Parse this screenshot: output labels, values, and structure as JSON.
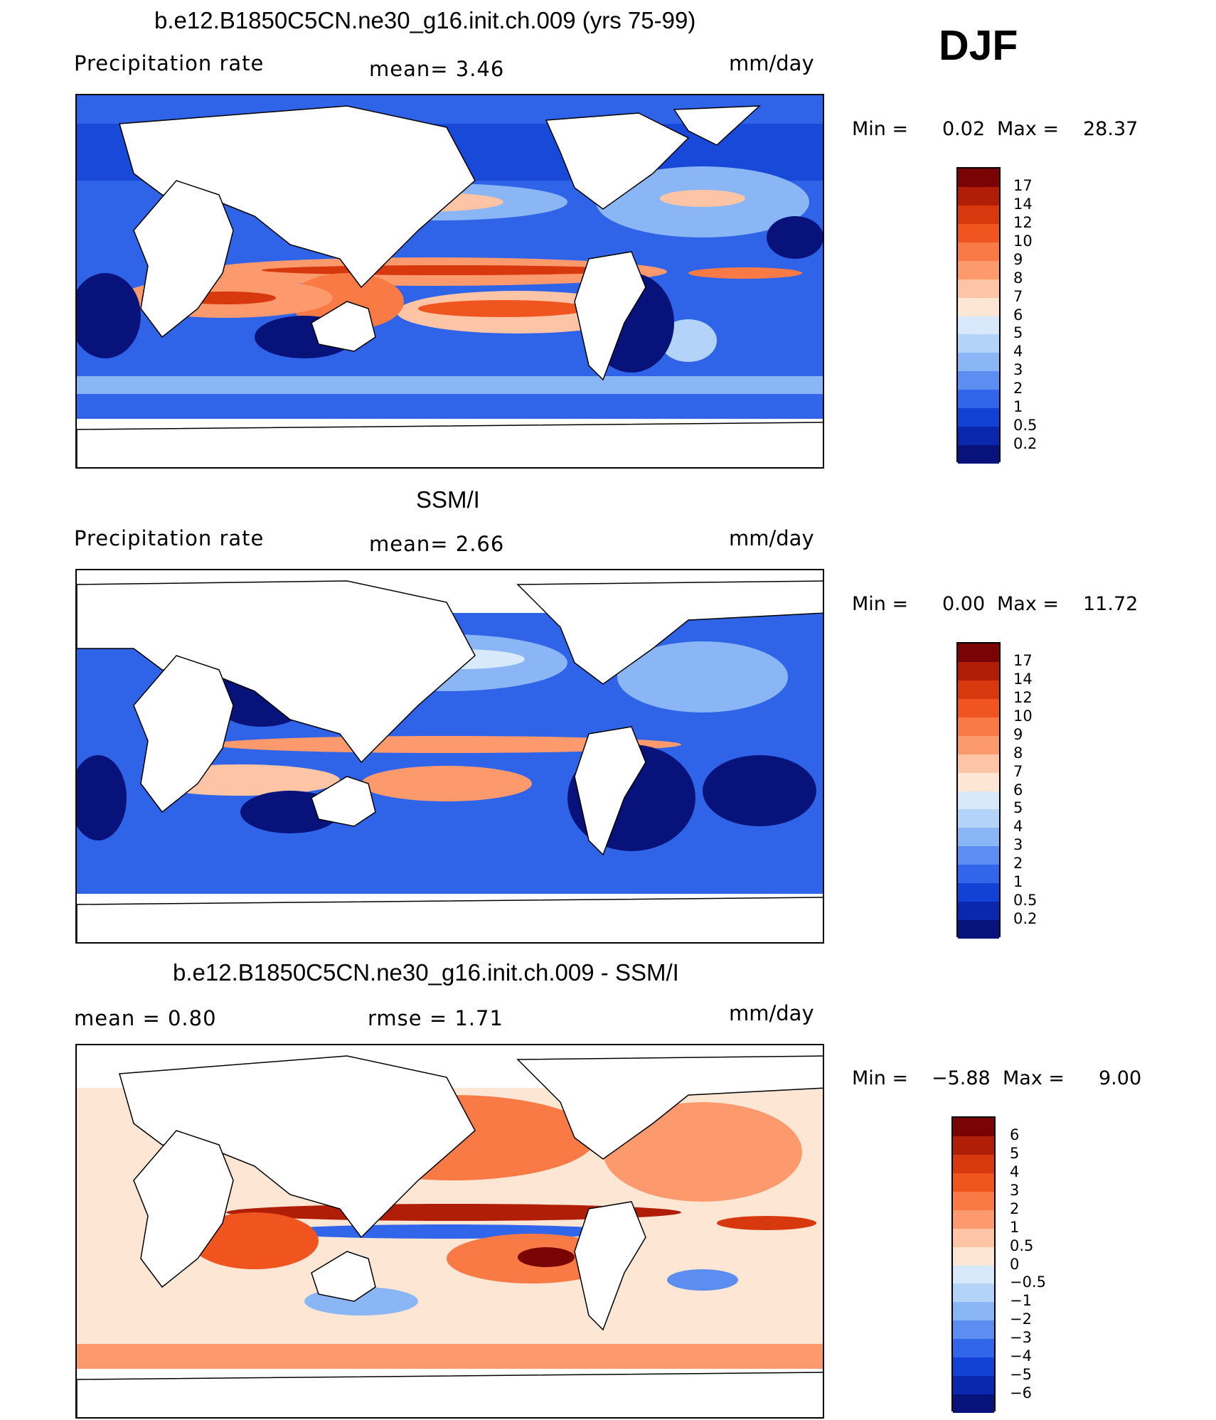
{
  "header": {
    "season": "DJF"
  },
  "panels": [
    {
      "title": "b.e12.B1850C5CN.ne30_g16.init.ch.009 (yrs 75-99)",
      "left_label": "Precipitation  rate",
      "mean_text": "mean=    3.46",
      "units": "mm/day",
      "min_label": "Min  =",
      "min_value": "0.02",
      "max_label": "Max  =",
      "max_value": "28.37"
    },
    {
      "title": "SSM/I",
      "left_label": "Precipitation  rate",
      "mean_text": "mean=    2.66",
      "units": "mm/day",
      "min_label": "Min  =",
      "min_value": "0.00",
      "max_label": "Max  =",
      "max_value": "11.72"
    },
    {
      "title": "b.e12.B1850C5CN.ne30_g16.init.ch.009 - SSM/I",
      "left_label": "mean  =    0.80",
      "mean_text": "rmse  =    1.71",
      "units": "mm/day",
      "min_label": "Min  =",
      "min_value": "−5.88",
      "max_label": "Max  =",
      "max_value": "9.00"
    }
  ],
  "colorbars": {
    "precip": {
      "labels": [
        "17",
        "14",
        "12",
        "10",
        "9",
        "8",
        "7",
        "6",
        "5",
        "4",
        "3",
        "2",
        "1",
        "0.5",
        "0.2"
      ],
      "colors": [
        "#7a0303",
        "#b01e07",
        "#d8380d",
        "#f0541f",
        "#fa7a45",
        "#fc9a6e",
        "#fdc4a6",
        "#fde6d3",
        "#d8e9fb",
        "#b4d3f8",
        "#8ab6f5",
        "#5c8df0",
        "#3266ea",
        "#1241d6",
        "#0928ae",
        "#07137a"
      ]
    },
    "diff": {
      "labels": [
        "6",
        "5",
        "4",
        "3",
        "2",
        "1",
        "0.5",
        "0",
        "−0.5",
        "−1",
        "−2",
        "−3",
        "−4",
        "−5",
        "−6"
      ],
      "colors": [
        "#7a0303",
        "#b01e07",
        "#d8380d",
        "#f0541f",
        "#fa7a45",
        "#fc9a6e",
        "#fdc4a6",
        "#fde6d3",
        "#d8e9fb",
        "#b4d3f8",
        "#8ab6f5",
        "#5c8df0",
        "#3266ea",
        "#1241d6",
        "#0928ae",
        "#07137a"
      ]
    }
  }
}
